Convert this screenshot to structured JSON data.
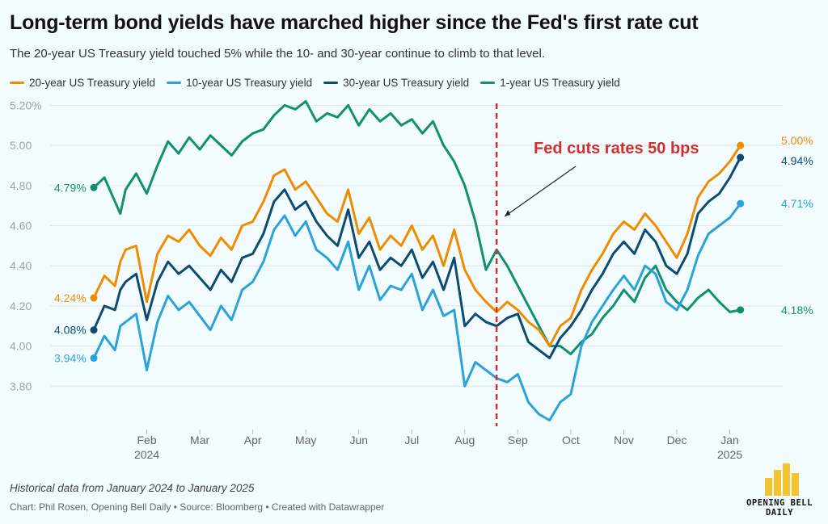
{
  "title": "Long-term bond yields have marched higher since the Fed's first rate cut",
  "subtitle": "The 20-year US Treasury yield touched 5% while the 10- and 30-year continue to climb to that level.",
  "legend": [
    {
      "label": "20-year US Treasury yield",
      "color": "#f08c00"
    },
    {
      "label": "10-year US Treasury yield",
      "color": "#2aa3d8"
    },
    {
      "label": "30-year US Treasury yield",
      "color": "#0d4c72"
    },
    {
      "label": "1-year US Treasury yield",
      "color": "#139072"
    }
  ],
  "annotation": {
    "text": "Fed cuts rates 50 bps",
    "color": "#d32f2f"
  },
  "note": "Historical data from January 2024 to January 2025",
  "credits": "Chart: Phil Rosen, Opening Bell Daily • Source: Bloomberg • Created with Datawrapper",
  "logo": {
    "line1": "OPENING BELL",
    "line2": "DAILY",
    "color": "#f4c430"
  },
  "chart_data": {
    "type": "line",
    "title": "Long-term bond yields have marched higher since the Fed's first rate cut",
    "xlabel": "",
    "ylabel": "",
    "x_range": [
      0,
      12.8
    ],
    "ylim": [
      3.6,
      5.25
    ],
    "y_ticks": [
      3.8,
      4.0,
      4.2,
      4.4,
      4.6,
      4.8,
      5.0,
      5.2
    ],
    "y_tick_labels": [
      "3.80",
      "4.00",
      "4.20",
      "4.40",
      "4.60",
      "4.80",
      "5.00",
      "5.20%"
    ],
    "grid": "horizontal",
    "x_ticks": [
      {
        "x": 1.0,
        "label": "Feb",
        "sub": "2024"
      },
      {
        "x": 2.0,
        "label": "Mar",
        "sub": ""
      },
      {
        "x": 3.0,
        "label": "Apr",
        "sub": ""
      },
      {
        "x": 4.0,
        "label": "May",
        "sub": ""
      },
      {
        "x": 5.0,
        "label": "Jun",
        "sub": ""
      },
      {
        "x": 6.0,
        "label": "Jul",
        "sub": ""
      },
      {
        "x": 7.0,
        "label": "Aug",
        "sub": ""
      },
      {
        "x": 8.0,
        "label": "Sep",
        "sub": ""
      },
      {
        "x": 9.0,
        "label": "Oct",
        "sub": ""
      },
      {
        "x": 10.0,
        "label": "Nov",
        "sub": ""
      },
      {
        "x": 11.0,
        "label": "Dec",
        "sub": ""
      },
      {
        "x": 12.0,
        "label": "Jan",
        "sub": "2025"
      }
    ],
    "event_line": {
      "x": 7.6,
      "label": "Fed cuts rates 50 bps"
    },
    "series": [
      {
        "name": "20-year US Treasury yield",
        "color": "#f08c00",
        "start_label": "4.24%",
        "end_label": "5.00%",
        "x": [
          0,
          0.2,
          0.4,
          0.5,
          0.6,
          0.8,
          1.0,
          1.2,
          1.4,
          1.6,
          1.8,
          2.0,
          2.2,
          2.4,
          2.6,
          2.8,
          3.0,
          3.2,
          3.4,
          3.6,
          3.8,
          4.0,
          4.2,
          4.4,
          4.6,
          4.8,
          5.0,
          5.2,
          5.4,
          5.6,
          5.8,
          6.0,
          6.2,
          6.4,
          6.6,
          6.8,
          7.0,
          7.2,
          7.4,
          7.6,
          7.8,
          8.0,
          8.2,
          8.4,
          8.6,
          8.8,
          9.0,
          9.2,
          9.4,
          9.6,
          9.8,
          10.0,
          10.2,
          10.4,
          10.6,
          10.8,
          11.0,
          11.2,
          11.4,
          11.6,
          11.8,
          12.0,
          12.2
        ],
        "values": [
          4.24,
          4.35,
          4.3,
          4.42,
          4.48,
          4.5,
          4.22,
          4.46,
          4.55,
          4.52,
          4.58,
          4.5,
          4.45,
          4.54,
          4.48,
          4.6,
          4.62,
          4.72,
          4.85,
          4.88,
          4.78,
          4.82,
          4.74,
          4.66,
          4.62,
          4.78,
          4.56,
          4.64,
          4.48,
          4.55,
          4.5,
          4.6,
          4.48,
          4.55,
          4.4,
          4.58,
          4.38,
          4.28,
          4.22,
          4.17,
          4.22,
          4.18,
          4.12,
          4.08,
          4.0,
          4.1,
          4.14,
          4.28,
          4.38,
          4.46,
          4.56,
          4.62,
          4.58,
          4.66,
          4.6,
          4.52,
          4.44,
          4.56,
          4.74,
          4.82,
          4.86,
          4.92,
          5.0
        ]
      },
      {
        "name": "10-year US Treasury yield",
        "color": "#2aa3d8",
        "start_label": "3.94%",
        "end_label": "4.71%",
        "x": [
          0,
          0.2,
          0.4,
          0.5,
          0.6,
          0.8,
          1.0,
          1.2,
          1.4,
          1.6,
          1.8,
          2.0,
          2.2,
          2.4,
          2.6,
          2.8,
          3.0,
          3.2,
          3.4,
          3.6,
          3.8,
          4.0,
          4.2,
          4.4,
          4.6,
          4.8,
          5.0,
          5.2,
          5.4,
          5.6,
          5.8,
          6.0,
          6.2,
          6.4,
          6.6,
          6.8,
          7.0,
          7.2,
          7.4,
          7.6,
          7.8,
          8.0,
          8.2,
          8.4,
          8.6,
          8.8,
          9.0,
          9.2,
          9.4,
          9.6,
          9.8,
          10.0,
          10.2,
          10.4,
          10.6,
          10.8,
          11.0,
          11.2,
          11.4,
          11.6,
          11.8,
          12.0,
          12.2
        ],
        "values": [
          3.94,
          4.05,
          3.98,
          4.1,
          4.12,
          4.16,
          3.88,
          4.12,
          4.25,
          4.18,
          4.22,
          4.15,
          4.08,
          4.2,
          4.13,
          4.28,
          4.32,
          4.42,
          4.58,
          4.65,
          4.55,
          4.62,
          4.48,
          4.44,
          4.38,
          4.52,
          4.28,
          4.4,
          4.23,
          4.3,
          4.28,
          4.36,
          4.18,
          4.28,
          4.15,
          4.18,
          3.8,
          3.92,
          3.88,
          3.84,
          3.82,
          3.86,
          3.72,
          3.66,
          3.63,
          3.72,
          3.76,
          4.0,
          4.12,
          4.2,
          4.28,
          4.35,
          4.28,
          4.4,
          4.36,
          4.22,
          4.18,
          4.28,
          4.45,
          4.56,
          4.6,
          4.64,
          4.71
        ]
      },
      {
        "name": "30-year US Treasury yield",
        "color": "#0d4c72",
        "start_label": "4.08%",
        "end_label": "4.94%",
        "x": [
          0,
          0.2,
          0.4,
          0.5,
          0.6,
          0.8,
          1.0,
          1.2,
          1.4,
          1.6,
          1.8,
          2.0,
          2.2,
          2.4,
          2.6,
          2.8,
          3.0,
          3.2,
          3.4,
          3.6,
          3.8,
          4.0,
          4.2,
          4.4,
          4.6,
          4.8,
          5.0,
          5.2,
          5.4,
          5.6,
          5.8,
          6.0,
          6.2,
          6.4,
          6.6,
          6.8,
          7.0,
          7.2,
          7.4,
          7.6,
          7.8,
          8.0,
          8.2,
          8.4,
          8.6,
          8.8,
          9.0,
          9.2,
          9.4,
          9.6,
          9.8,
          10.0,
          10.2,
          10.4,
          10.6,
          10.8,
          11.0,
          11.2,
          11.4,
          11.6,
          11.8,
          12.0,
          12.2
        ],
        "values": [
          4.08,
          4.2,
          4.18,
          4.28,
          4.32,
          4.36,
          4.13,
          4.32,
          4.42,
          4.36,
          4.4,
          4.34,
          4.28,
          4.38,
          4.32,
          4.44,
          4.46,
          4.56,
          4.72,
          4.78,
          4.68,
          4.72,
          4.62,
          4.55,
          4.5,
          4.68,
          4.44,
          4.52,
          4.38,
          4.44,
          4.4,
          4.48,
          4.34,
          4.42,
          4.28,
          4.44,
          4.1,
          4.16,
          4.12,
          4.1,
          4.14,
          4.16,
          4.02,
          3.98,
          3.94,
          4.04,
          4.1,
          4.18,
          4.28,
          4.36,
          4.46,
          4.52,
          4.46,
          4.58,
          4.52,
          4.4,
          4.36,
          4.46,
          4.66,
          4.72,
          4.76,
          4.84,
          4.94
        ]
      },
      {
        "name": "1-year US Treasury yield",
        "color": "#139072",
        "start_label": "4.79%",
        "end_label": "4.18%",
        "x": [
          0,
          0.2,
          0.4,
          0.5,
          0.6,
          0.8,
          1.0,
          1.2,
          1.4,
          1.6,
          1.8,
          2.0,
          2.2,
          2.4,
          2.6,
          2.8,
          3.0,
          3.2,
          3.4,
          3.6,
          3.8,
          4.0,
          4.2,
          4.4,
          4.6,
          4.8,
          5.0,
          5.2,
          5.4,
          5.6,
          5.8,
          6.0,
          6.2,
          6.4,
          6.6,
          6.8,
          7.0,
          7.2,
          7.4,
          7.6,
          7.8,
          8.0,
          8.2,
          8.4,
          8.6,
          8.8,
          9.0,
          9.2,
          9.4,
          9.6,
          9.8,
          10.0,
          10.2,
          10.4,
          10.6,
          10.8,
          11.0,
          11.2,
          11.4,
          11.6,
          11.8,
          12.0,
          12.2
        ],
        "values": [
          4.79,
          4.84,
          4.72,
          4.66,
          4.78,
          4.86,
          4.76,
          4.9,
          5.02,
          4.96,
          5.04,
          4.98,
          5.05,
          5.0,
          4.95,
          5.02,
          5.06,
          5.08,
          5.15,
          5.2,
          5.18,
          5.22,
          5.12,
          5.16,
          5.14,
          5.2,
          5.1,
          5.18,
          5.12,
          5.16,
          5.1,
          5.13,
          5.06,
          5.12,
          5.0,
          4.92,
          4.8,
          4.62,
          4.38,
          4.48,
          4.4,
          4.3,
          4.2,
          4.1,
          4.0,
          4.0,
          3.96,
          4.02,
          4.06,
          4.14,
          4.2,
          4.28,
          4.22,
          4.34,
          4.4,
          4.28,
          4.22,
          4.18,
          4.24,
          4.28,
          4.22,
          4.17,
          4.18
        ]
      }
    ]
  }
}
